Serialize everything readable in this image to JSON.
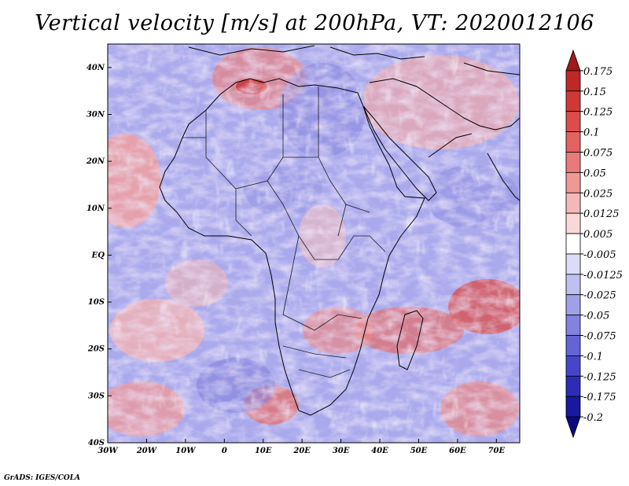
{
  "title": "Vertical velocity [m/s] at 200hPa, VT: 2020012106",
  "credit": "GrADS: IGES/COLA",
  "map": {
    "lon_range": [
      -30,
      76
    ],
    "lat_range": [
      -40,
      45
    ],
    "lon_ticks": [
      {
        "value": -30,
        "label": "30W"
      },
      {
        "value": -20,
        "label": "20W"
      },
      {
        "value": -10,
        "label": "10W"
      },
      {
        "value": 0,
        "label": "0"
      },
      {
        "value": 10,
        "label": "10E"
      },
      {
        "value": 20,
        "label": "20E"
      },
      {
        "value": 30,
        "label": "30E"
      },
      {
        "value": 40,
        "label": "40E"
      },
      {
        "value": 50,
        "label": "50E"
      },
      {
        "value": 60,
        "label": "60E"
      },
      {
        "value": 70,
        "label": "70E"
      }
    ],
    "lat_ticks": [
      {
        "value": 40,
        "label": "40N"
      },
      {
        "value": 30,
        "label": "30N"
      },
      {
        "value": 20,
        "label": "20N"
      },
      {
        "value": 10,
        "label": "10N"
      },
      {
        "value": 0,
        "label": "EQ"
      },
      {
        "value": -10,
        "label": "10S"
      },
      {
        "value": -20,
        "label": "20S"
      },
      {
        "value": -30,
        "label": "30S"
      },
      {
        "value": -40,
        "label": "40S"
      }
    ]
  },
  "colorbar": {
    "levels": [
      "0.175",
      "0.15",
      "0.125",
      "0.1",
      "0.075",
      "0.05",
      "0.025",
      "0.0125",
      "0.005",
      "-0.005",
      "-0.0125",
      "-0.025",
      "-0.05",
      "-0.075",
      "-0.1",
      "-0.125",
      "-0.175",
      "-0.2"
    ],
    "colors": [
      "#a01818",
      "#c02828",
      "#d03838",
      "#dc4c4c",
      "#e46262",
      "#ea7a7a",
      "#f09898",
      "#f5b8b8",
      "#fad8d8",
      "#ffffff",
      "#dcdcf6",
      "#c0c0f0",
      "#a0a0e8",
      "#8282e0",
      "#6464d6",
      "#4646ca",
      "#2c2cb8",
      "#1818a0",
      "#0a0a80"
    ]
  }
}
